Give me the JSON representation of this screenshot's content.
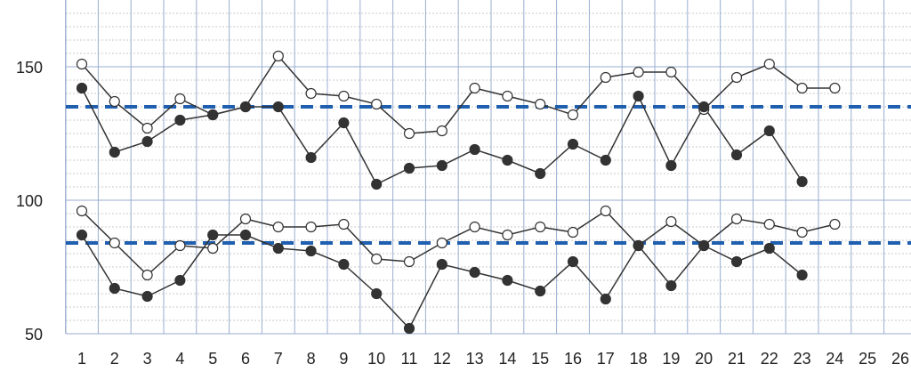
{
  "chart_data": {
    "type": "line",
    "title": "",
    "xlabel": "",
    "ylabel": "",
    "grid": true,
    "x": [
      1,
      2,
      3,
      4,
      5,
      6,
      7,
      8,
      9,
      10,
      11,
      12,
      13,
      14,
      15,
      16,
      17,
      18,
      19,
      20,
      21,
      22,
      23,
      24,
      25,
      26
    ],
    "xlim": [
      0,
      27
    ],
    "ylim": [
      50,
      175
    ],
    "y_ticks": [
      50,
      100,
      150
    ],
    "series": [
      {
        "marker": "open",
        "values": [
          151,
          137,
          127,
          138,
          132,
          135,
          154,
          140,
          139,
          136,
          125,
          126,
          142,
          139,
          136,
          132,
          146,
          148,
          148,
          134,
          146,
          151,
          142,
          142,
          null,
          null
        ]
      },
      {
        "marker": "filled",
        "values": [
          142,
          118,
          122,
          130,
          132,
          135,
          135,
          116,
          129,
          106,
          112,
          113,
          119,
          115,
          110,
          121,
          115,
          139,
          113,
          135,
          117,
          126,
          107,
          null,
          null,
          null
        ]
      },
      {
        "marker": "open",
        "values": [
          96,
          84,
          72,
          83,
          82,
          93,
          90,
          90,
          91,
          78,
          77,
          84,
          90,
          87,
          90,
          88,
          96,
          83,
          92,
          83,
          93,
          91,
          88,
          91,
          null,
          null
        ]
      },
      {
        "marker": "filled",
        "values": [
          87,
          67,
          64,
          70,
          87,
          87,
          82,
          81,
          76,
          65,
          52,
          76,
          73,
          70,
          66,
          77,
          63,
          83,
          68,
          83,
          77,
          82,
          72,
          null,
          null,
          null
        ]
      }
    ],
    "reference_lines": [
      {
        "y": 135,
        "style": "dashed",
        "color": "#1f5fb0"
      },
      {
        "y": 84,
        "style": "dashed",
        "color": "#1f5fb0"
      }
    ],
    "colors": {
      "line": "#333333",
      "marker_fill": "#333333",
      "open_fill": "#ffffff",
      "grid_major": "#9aaed0",
      "grid_minor": "#c8c8c8"
    }
  }
}
